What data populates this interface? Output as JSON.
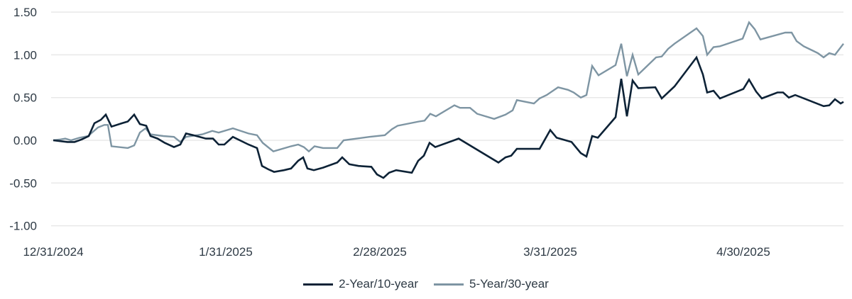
{
  "chart_data": {
    "type": "line",
    "title": "",
    "xlabel": "",
    "ylabel": "",
    "ylim": [
      -1.0,
      1.5
    ],
    "y_ticks": [
      "1.50",
      "1.00",
      "0.50",
      "0.00",
      "-0.50",
      "-1.00"
    ],
    "x_ticks": [
      "12/31/2024",
      "1/31/2025",
      "2/28/2025",
      "3/31/2025",
      "4/30/2025"
    ],
    "grid": "horizontal",
    "legend_position": "bottom",
    "series": [
      {
        "name": "2-Year/10-year",
        "color": "#0d2236",
        "points": [
          [
            75,
            0.0
          ],
          [
            85,
            -0.01
          ],
          [
            95,
            -0.02
          ],
          [
            105,
            -0.02
          ],
          [
            115,
            0.01
          ],
          [
            125,
            0.05
          ],
          [
            133,
            0.2
          ],
          [
            142,
            0.24
          ],
          [
            149,
            0.3
          ],
          [
            157,
            0.16
          ],
          [
            172,
            0.2
          ],
          [
            180,
            0.22
          ],
          [
            189,
            0.3
          ],
          [
            197,
            0.19
          ],
          [
            206,
            0.17
          ],
          [
            212,
            0.05
          ],
          [
            222,
            0.02
          ],
          [
            232,
            -0.03
          ],
          [
            245,
            -0.08
          ],
          [
            254,
            -0.05
          ],
          [
            262,
            0.08
          ],
          [
            272,
            0.06
          ],
          [
            290,
            0.02
          ],
          [
            300,
            0.02
          ],
          [
            308,
            -0.05
          ],
          [
            316,
            -0.05
          ],
          [
            328,
            0.04
          ],
          [
            350,
            -0.05
          ],
          [
            362,
            -0.09
          ],
          [
            369,
            -0.3
          ],
          [
            378,
            -0.34
          ],
          [
            386,
            -0.37
          ],
          [
            400,
            -0.35
          ],
          [
            410,
            -0.33
          ],
          [
            420,
            -0.24
          ],
          [
            427,
            -0.2
          ],
          [
            433,
            -0.33
          ],
          [
            442,
            -0.35
          ],
          [
            455,
            -0.32
          ],
          [
            475,
            -0.26
          ],
          [
            482,
            -0.2
          ],
          [
            492,
            -0.28
          ],
          [
            505,
            -0.3
          ],
          [
            523,
            -0.31
          ],
          [
            531,
            -0.4
          ],
          [
            540,
            -0.44
          ],
          [
            548,
            -0.38
          ],
          [
            558,
            -0.35
          ],
          [
            580,
            -0.38
          ],
          [
            589,
            -0.24
          ],
          [
            597,
            -0.18
          ],
          [
            605,
            -0.03
          ],
          [
            613,
            -0.08
          ],
          [
            646,
            0.02
          ],
          [
            702,
            -0.26
          ],
          [
            712,
            -0.2
          ],
          [
            720,
            -0.18
          ],
          [
            728,
            -0.1
          ],
          [
            760,
            -0.1
          ],
          [
            775,
            0.12
          ],
          [
            784,
            0.03
          ],
          [
            805,
            -0.02
          ],
          [
            818,
            -0.15
          ],
          [
            826,
            -0.19
          ],
          [
            834,
            0.05
          ],
          [
            842,
            0.03
          ],
          [
            867,
            0.27
          ],
          [
            875,
            0.72
          ],
          [
            883,
            0.28
          ],
          [
            891,
            0.7
          ],
          [
            899,
            0.61
          ],
          [
            923,
            0.62
          ],
          [
            932,
            0.49
          ],
          [
            950,
            0.63
          ],
          [
            981,
            0.97
          ],
          [
            990,
            0.77
          ],
          [
            996,
            0.56
          ],
          [
            1005,
            0.58
          ],
          [
            1014,
            0.49
          ],
          [
            1047,
            0.6
          ],
          [
            1055,
            0.71
          ],
          [
            1065,
            0.57
          ],
          [
            1073,
            0.49
          ],
          [
            1095,
            0.56
          ],
          [
            1103,
            0.56
          ],
          [
            1111,
            0.5
          ],
          [
            1120,
            0.53
          ],
          [
            1160,
            0.4
          ],
          [
            1168,
            0.41
          ],
          [
            1176,
            0.48
          ],
          [
            1184,
            0.43
          ],
          [
            1188,
            0.45
          ]
        ]
      },
      {
        "name": "5-Year/30-year",
        "color": "#7e95a3",
        "points": [
          [
            75,
            0.0
          ],
          [
            85,
            0.01
          ],
          [
            92,
            0.02
          ],
          [
            100,
            0.0
          ],
          [
            112,
            0.03
          ],
          [
            124,
            0.05
          ],
          [
            138,
            0.15
          ],
          [
            147,
            0.18
          ],
          [
            152,
            0.18
          ],
          [
            157,
            -0.07
          ],
          [
            180,
            -0.09
          ],
          [
            189,
            -0.06
          ],
          [
            197,
            0.09
          ],
          [
            205,
            0.14
          ],
          [
            212,
            0.07
          ],
          [
            230,
            0.05
          ],
          [
            245,
            0.04
          ],
          [
            254,
            -0.02
          ],
          [
            262,
            0.04
          ],
          [
            285,
            0.07
          ],
          [
            299,
            0.11
          ],
          [
            308,
            0.09
          ],
          [
            328,
            0.14
          ],
          [
            350,
            0.08
          ],
          [
            362,
            0.06
          ],
          [
            370,
            -0.03
          ],
          [
            385,
            -0.13
          ],
          [
            410,
            -0.07
          ],
          [
            420,
            -0.05
          ],
          [
            428,
            -0.08
          ],
          [
            435,
            -0.13
          ],
          [
            443,
            -0.07
          ],
          [
            455,
            -0.09
          ],
          [
            475,
            -0.09
          ],
          [
            484,
            0.0
          ],
          [
            520,
            0.04
          ],
          [
            542,
            0.06
          ],
          [
            552,
            0.13
          ],
          [
            560,
            0.17
          ],
          [
            590,
            0.22
          ],
          [
            598,
            0.23
          ],
          [
            606,
            0.31
          ],
          [
            614,
            0.28
          ],
          [
            640,
            0.41
          ],
          [
            648,
            0.38
          ],
          [
            662,
            0.38
          ],
          [
            672,
            0.31
          ],
          [
            696,
            0.25
          ],
          [
            712,
            0.3
          ],
          [
            722,
            0.35
          ],
          [
            728,
            0.47
          ],
          [
            752,
            0.43
          ],
          [
            760,
            0.49
          ],
          [
            770,
            0.53
          ],
          [
            786,
            0.62
          ],
          [
            800,
            0.59
          ],
          [
            808,
            0.56
          ],
          [
            818,
            0.5
          ],
          [
            826,
            0.53
          ],
          [
            834,
            0.87
          ],
          [
            843,
            0.76
          ],
          [
            867,
            0.88
          ],
          [
            875,
            1.13
          ],
          [
            883,
            0.75
          ],
          [
            891,
            1.0
          ],
          [
            899,
            0.77
          ],
          [
            924,
            0.97
          ],
          [
            932,
            0.98
          ],
          [
            941,
            1.07
          ],
          [
            950,
            1.13
          ],
          [
            981,
            1.31
          ],
          [
            990,
            1.22
          ],
          [
            996,
            1.0
          ],
          [
            1005,
            1.09
          ],
          [
            1014,
            1.1
          ],
          [
            1046,
            1.19
          ],
          [
            1055,
            1.38
          ],
          [
            1063,
            1.3
          ],
          [
            1071,
            1.18
          ],
          [
            1106,
            1.26
          ],
          [
            1115,
            1.26
          ],
          [
            1122,
            1.16
          ],
          [
            1132,
            1.1
          ],
          [
            1152,
            1.02
          ],
          [
            1160,
            0.97
          ],
          [
            1168,
            1.02
          ],
          [
            1176,
            1.0
          ],
          [
            1188,
            1.13
          ]
        ]
      }
    ]
  },
  "legend": {
    "items": [
      {
        "label": "2-Year/10-year",
        "color": "#0d2236"
      },
      {
        "label": "5-Year/30-year",
        "color": "#7e95a3"
      }
    ]
  }
}
